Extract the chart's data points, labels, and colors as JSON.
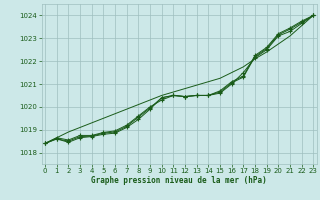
{
  "x": [
    0,
    1,
    2,
    3,
    4,
    5,
    6,
    7,
    8,
    9,
    10,
    11,
    12,
    13,
    14,
    15,
    16,
    17,
    18,
    19,
    20,
    21,
    22,
    23
  ],
  "line1": [
    1018.4,
    1018.6,
    1018.45,
    1018.65,
    1018.7,
    1018.8,
    1018.85,
    1019.1,
    1019.45,
    1019.9,
    1020.4,
    1020.5,
    1020.45,
    1020.5,
    1020.5,
    1020.6,
    1021.0,
    1021.5,
    1022.15,
    1022.5,
    1023.1,
    1023.3,
    1023.65,
    1024.0
  ],
  "line2": [
    1018.4,
    1018.6,
    1018.5,
    1018.7,
    1018.72,
    1018.85,
    1018.9,
    1019.15,
    1019.55,
    1019.95,
    1020.4,
    1020.5,
    1020.45,
    1020.5,
    1020.5,
    1020.65,
    1021.05,
    1021.3,
    1022.2,
    1022.55,
    1023.15,
    1023.4,
    1023.7,
    1024.0
  ],
  "line3": [
    1018.4,
    1018.65,
    1018.55,
    1018.75,
    1018.75,
    1018.88,
    1018.95,
    1019.2,
    1019.6,
    1020.0,
    1020.3,
    1020.5,
    1020.45,
    1020.5,
    1020.5,
    1020.7,
    1021.1,
    1021.35,
    1022.25,
    1022.6,
    1023.2,
    1023.45,
    1023.75,
    1024.0
  ],
  "line_straight": [
    1018.4,
    1018.65,
    1018.9,
    1019.1,
    1019.3,
    1019.5,
    1019.7,
    1019.9,
    1020.1,
    1020.3,
    1020.5,
    1020.65,
    1020.8,
    1020.95,
    1021.1,
    1021.25,
    1021.5,
    1021.75,
    1022.1,
    1022.4,
    1022.75,
    1023.1,
    1023.55,
    1024.0
  ],
  "bg_color": "#cce8e8",
  "grid_color": "#9fbfbf",
  "line_color": "#1a5c1a",
  "xlabel": "Graphe pression niveau de la mer (hPa)",
  "ylim": [
    1017.5,
    1024.5
  ],
  "xlim": [
    -0.3,
    23.3
  ],
  "yticks": [
    1018,
    1019,
    1020,
    1021,
    1022,
    1023,
    1024
  ],
  "xticks": [
    0,
    1,
    2,
    3,
    4,
    5,
    6,
    7,
    8,
    9,
    10,
    11,
    12,
    13,
    14,
    15,
    16,
    17,
    18,
    19,
    20,
    21,
    22,
    23
  ]
}
